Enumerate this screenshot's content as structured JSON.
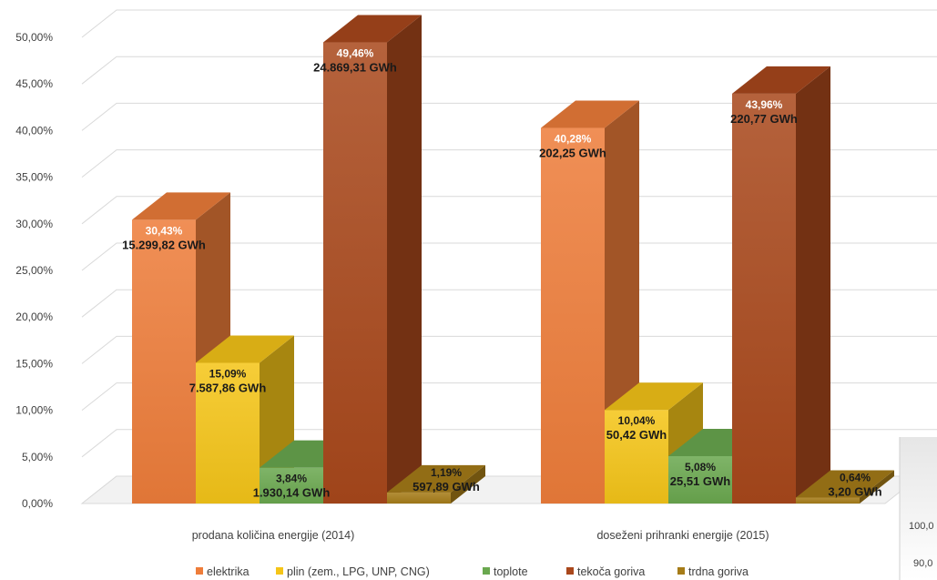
{
  "chart_data": {
    "type": "bar",
    "categories": [
      "prodana količina energije (2014)",
      "doseženi prihranki energije (2015)"
    ],
    "ylim": [
      0,
      50
    ],
    "y_ticks": [
      "0,00%",
      "5,00%",
      "10,00%",
      "15,00%",
      "20,00%",
      "25,00%",
      "30,00%",
      "35,00%",
      "40,00%",
      "45,00%",
      "50,00%"
    ],
    "grid": true,
    "legend_position": "bottom",
    "series": [
      {
        "name": "elektrika",
        "color": "#ee7d3a",
        "values": [
          30.43,
          40.28
        ],
        "pct_labels": [
          "30,43%",
          "40,28%"
        ],
        "gwh_labels": [
          "15.299,82 GWh",
          "202,25 GWh"
        ]
      },
      {
        "name": "plin (zem., LPG, UNP, CNG)",
        "color": "#f5c518",
        "values": [
          15.09,
          10.04
        ],
        "pct_labels": [
          "15,09%",
          "10,04%"
        ],
        "gwh_labels": [
          "7.587,86 GWh",
          "50,42 GWh"
        ]
      },
      {
        "name": "toplote",
        "color": "#6aa84f",
        "values": [
          3.84,
          5.08
        ],
        "pct_labels": [
          "3,84%",
          "5,08%"
        ],
        "gwh_labels": [
          "1.930,14 GWh",
          "25,51 GWh"
        ]
      },
      {
        "name": "tekoča goriva",
        "color": "#a9481c",
        "values": [
          49.46,
          43.96
        ],
        "pct_labels": [
          "49,46%",
          "43,96%"
        ],
        "gwh_labels": [
          "24.869,31 GWh",
          "220,77 GWh"
        ]
      },
      {
        "name": "trdna goriva",
        "color": "#a67c18",
        "values": [
          1.19,
          0.64
        ],
        "pct_labels": [
          "1,19%",
          "0,64%"
        ],
        "gwh_labels": [
          "597,89 GWh",
          "3,20 GWh"
        ]
      }
    ]
  },
  "legend_labels": [
    "elektrika",
    "plin (zem., LPG, UNP, CNG)",
    "toplote",
    "tekoča goriva",
    "trdna goriva"
  ],
  "overlap_chart": {
    "tick_labels": [
      "100,0",
      "90,0"
    ]
  }
}
